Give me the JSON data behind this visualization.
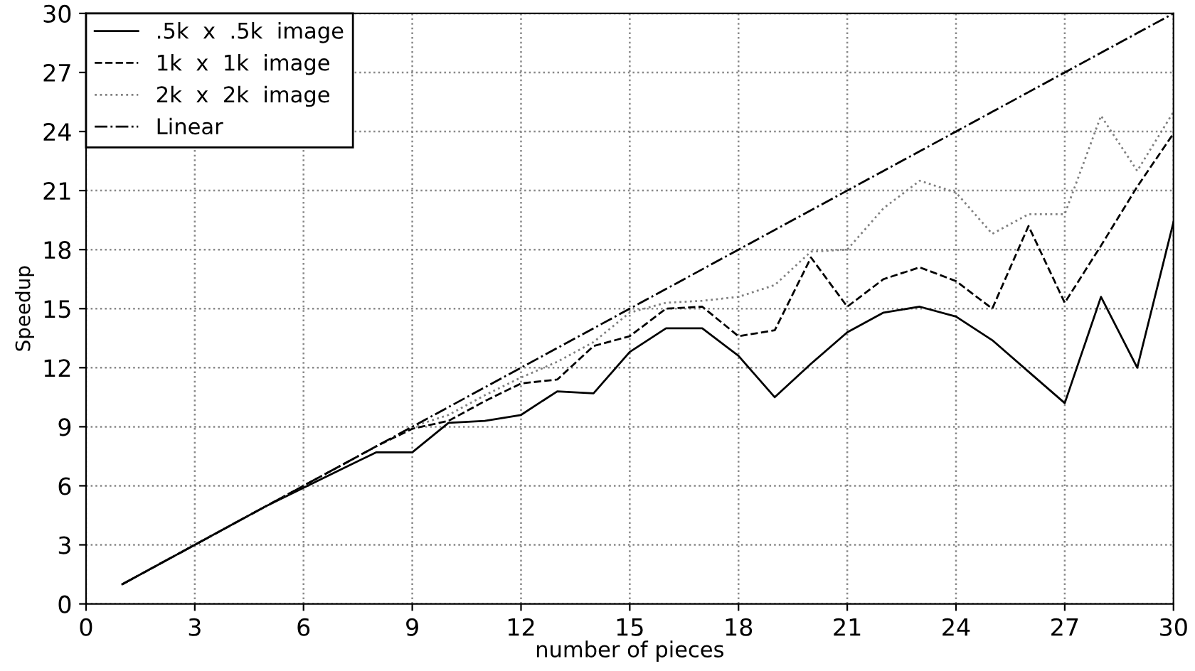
{
  "chart_data": {
    "type": "line",
    "xlabel": "number of pieces",
    "ylabel": "Speedup",
    "x": [
      1,
      2,
      3,
      4,
      5,
      6,
      7,
      8,
      9,
      10,
      11,
      12,
      13,
      14,
      15,
      16,
      17,
      18,
      19,
      20,
      21,
      22,
      23,
      24,
      25,
      26,
      27,
      28,
      29,
      30
    ],
    "series": [
      {
        "name": ".5k  x  .5k  image",
        "color": "#000000",
        "line_style": "solid",
        "values": [
          1,
          2,
          3,
          4,
          5,
          5.9,
          6.8,
          7.7,
          7.7,
          9.2,
          9.3,
          9.6,
          10.8,
          10.7,
          12.8,
          14.0,
          14.0,
          12.6,
          10.5,
          12.2,
          13.8,
          14.8,
          15.1,
          14.6,
          13.4,
          11.8,
          10.2,
          15.6,
          12.0,
          19.4
        ]
      },
      {
        "name": "1k  x  1k  image",
        "color": "#000000",
        "line_style": "dashed",
        "values": [
          1,
          2,
          3,
          4,
          5,
          6,
          7,
          8,
          8.9,
          9.3,
          10.3,
          11.2,
          11.4,
          13.1,
          13.6,
          15.0,
          15.1,
          13.6,
          13.9,
          17.6,
          15.1,
          16.5,
          17.1,
          16.4,
          15.0,
          19.2,
          15.3,
          18.2,
          21.2,
          23.9
        ]
      },
      {
        "name": "2k  x  2k  image",
        "color": "#808080",
        "line_style": "dotted",
        "values": [
          1,
          2,
          3,
          4,
          5,
          6,
          7,
          8,
          9,
          9.6,
          10.6,
          11.5,
          12.3,
          13.3,
          14.8,
          15.3,
          15.4,
          15.6,
          16.2,
          17.9,
          18.0,
          20.1,
          21.5,
          20.9,
          18.8,
          19.8,
          19.8,
          24.8,
          22.0,
          25.0
        ]
      },
      {
        "name": "Linear",
        "color": "#000000",
        "line_style": "dashdot",
        "values": [
          1,
          2,
          3,
          4,
          5,
          6,
          7,
          8,
          9,
          10,
          11,
          12,
          13,
          14,
          15,
          16,
          17,
          18,
          19,
          20,
          21,
          22,
          23,
          24,
          25,
          26,
          27,
          28,
          29,
          30
        ]
      }
    ],
    "xlim": [
      0,
      30
    ],
    "xticks": [
      0,
      3,
      6,
      9,
      12,
      15,
      18,
      21,
      24,
      27,
      30
    ],
    "ylim": [
      0,
      30
    ],
    "yticks": [
      0,
      3,
      6,
      9,
      12,
      15,
      18,
      21,
      24,
      27,
      30
    ],
    "grid": true,
    "legend": "top left",
    "marker": "none"
  }
}
